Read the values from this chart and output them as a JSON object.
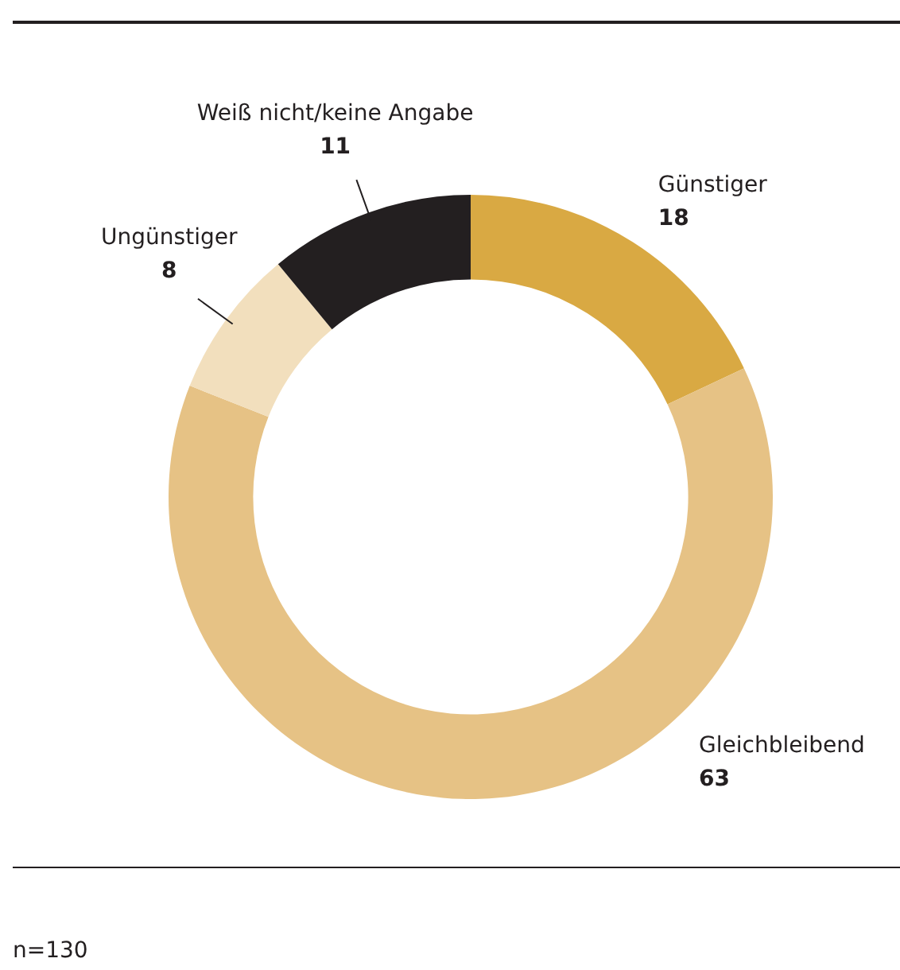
{
  "chart_data": {
    "type": "donut",
    "categories": [
      "Günstiger",
      "Gleichbleibend",
      "Ungünstiger",
      "Weiß nicht/keine Angabe"
    ],
    "values": [
      18,
      63,
      8,
      11
    ],
    "colors": [
      "#d9a943",
      "#e6c285",
      "#f2dfbd",
      "#231f20"
    ],
    "data_labels": true,
    "legend": false,
    "annotations": [
      "n=130"
    ]
  }
}
